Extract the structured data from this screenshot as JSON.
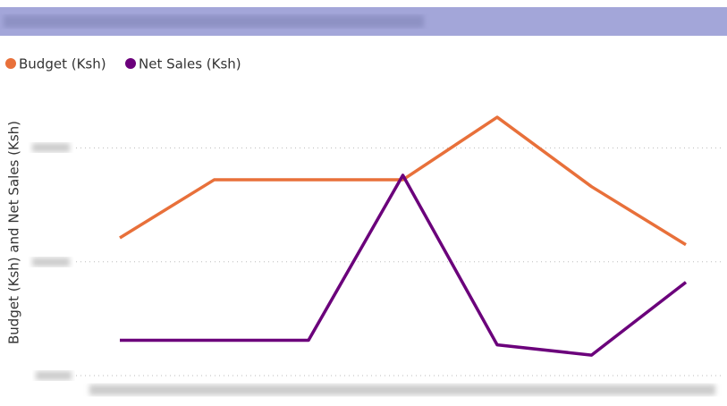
{
  "chart_data": {
    "type": "line",
    "y_axis_label": "Budget (Ksh) and Net Sales (Ksh)",
    "categories": [
      null,
      null,
      null,
      null,
      null,
      null,
      null
    ],
    "series": [
      {
        "name": "Budget (Ksh)",
        "color": "#e8703a",
        "values": [
          1.21,
          1.72,
          1.72,
          1.72,
          2.27,
          1.66,
          1.15
        ]
      },
      {
        "name": "Net Sales (Ksh)",
        "color": "#6b007b",
        "values": [
          0.31,
          0.31,
          0.31,
          1.76,
          0.27,
          0.18,
          0.82
        ]
      }
    ],
    "ylim": [
      0,
      2.4
    ],
    "yticks": [
      0,
      1,
      2
    ],
    "grid": true
  }
}
